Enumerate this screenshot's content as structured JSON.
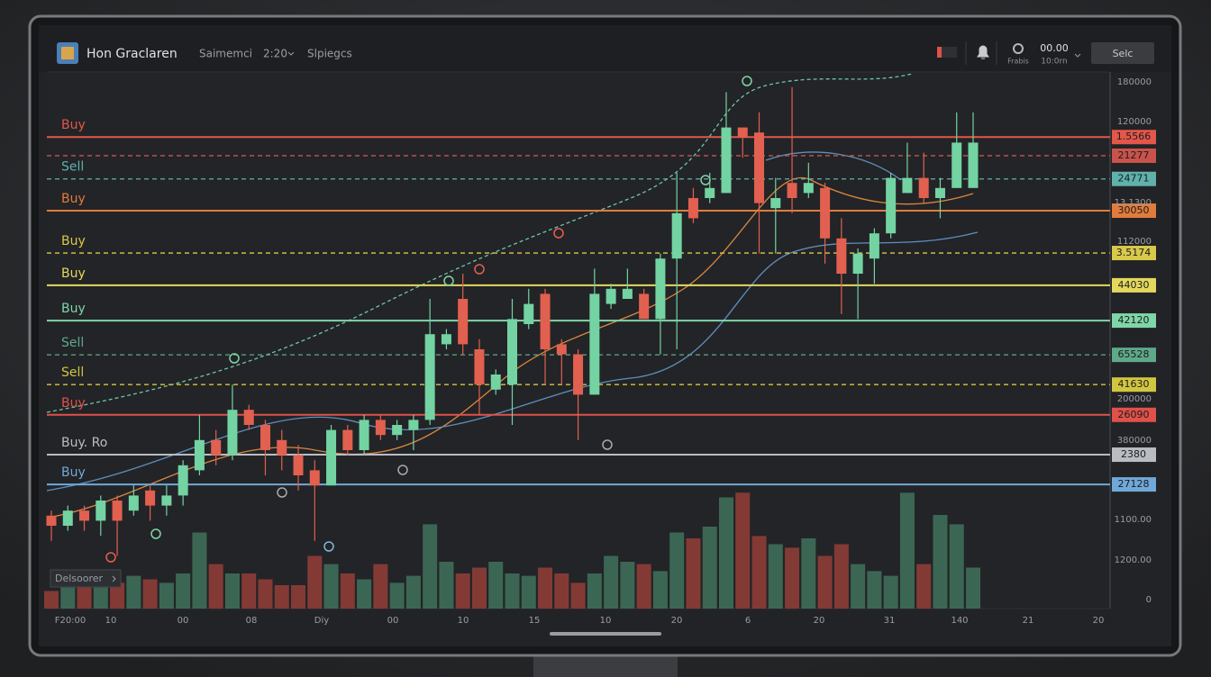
{
  "header": {
    "title": "Hon Graclaren",
    "menu": [
      "Saimemci",
      "2:20",
      "Slpiegcs"
    ],
    "clock": [
      "00.00",
      "10:0rn"
    ],
    "settings": "Frabis",
    "button": "Selc"
  },
  "panel": {
    "indicator": "Delsoorer"
  },
  "chart_data": {
    "type": "candlestick",
    "ylim": [
      0,
      100
    ],
    "volume_lim": [
      0,
      100
    ],
    "open": [
      12,
      10,
      13,
      11,
      15,
      13,
      17,
      14,
      16,
      21,
      27,
      24,
      33,
      30,
      27,
      24,
      21,
      18,
      29,
      25,
      31,
      28,
      29,
      31,
      46,
      55,
      45,
      37,
      38,
      50,
      56,
      46,
      44,
      36,
      54,
      55,
      56,
      51,
      63,
      75,
      75,
      76,
      89,
      88,
      73,
      78,
      76,
      77,
      67,
      60,
      63,
      68,
      76,
      79,
      75,
      77,
      77
    ],
    "high": [
      13,
      14,
      14,
      16,
      16,
      18,
      18,
      18,
      23,
      32,
      29,
      38,
      34,
      31,
      29,
      26,
      23,
      30,
      30,
      32,
      32,
      31,
      32,
      55,
      49,
      60,
      47,
      41,
      55,
      57,
      57,
      47,
      45,
      61,
      58,
      61,
      57,
      64,
      80,
      77,
      80,
      96,
      89,
      92,
      79,
      97,
      82,
      78,
      71,
      65,
      69,
      80,
      86,
      84,
      79,
      92,
      92
    ],
    "low": [
      7,
      9,
      9,
      8,
      4,
      12,
      11,
      12,
      14,
      20,
      22,
      23,
      29,
      20,
      21,
      17,
      7,
      18,
      24,
      24,
      27,
      27,
      25,
      30,
      45,
      44,
      32,
      36,
      30,
      49,
      38,
      38,
      27,
      36,
      53,
      55,
      51,
      44,
      45,
      70,
      74,
      76,
      83,
      64,
      64,
      72,
      75,
      62,
      52,
      51,
      58,
      67,
      76,
      74,
      71,
      77,
      77
    ],
    "close": [
      10,
      13,
      11,
      15,
      11,
      16,
      14,
      16,
      22,
      27,
      24,
      33,
      30,
      25,
      24,
      20,
      18,
      29,
      25,
      31,
      28,
      30,
      31,
      48,
      48,
      46,
      38,
      40,
      51,
      54,
      45,
      44,
      36,
      56,
      57,
      57,
      51,
      63,
      72,
      71,
      77,
      89,
      87,
      74,
      75,
      75,
      78,
      67,
      60,
      64,
      68,
      79,
      79,
      75,
      77,
      86,
      86
    ],
    "volume": [
      15,
      18,
      20,
      18,
      22,
      28,
      25,
      22,
      30,
      65,
      38,
      30,
      30,
      25,
      20,
      20,
      45,
      38,
      30,
      25,
      38,
      22,
      28,
      72,
      40,
      30,
      35,
      40,
      30,
      28,
      35,
      30,
      22,
      30,
      45,
      40,
      38,
      32,
      65,
      60,
      70,
      95,
      99,
      62,
      55,
      52,
      60,
      45,
      55,
      38,
      32,
      28,
      99,
      38,
      80,
      72,
      35
    ],
    "up_color": "#73d3a2",
    "down_color": "#e2604f",
    "levels": [
      {
        "label": "Buy",
        "tag": "1.5566",
        "value": 87.1,
        "color": "#e2574a",
        "dashed": false
      },
      {
        "tag": "21277",
        "value": 83.4,
        "color": "#c9534b",
        "dashed": true
      },
      {
        "label": "Sell",
        "tag": "24771",
        "value": 78.8,
        "color": "#5fb2ab",
        "dashed": true
      },
      {
        "label": "Buy",
        "tag": "30050",
        "value": 72.5,
        "color": "#e07c3c",
        "dashed": false
      },
      {
        "label": "Buy",
        "tag": "3.5174",
        "value": 64.1,
        "color": "#d9c94a",
        "dashed": true
      },
      {
        "label": "Buy",
        "tag": "44030",
        "value": 57.7,
        "color": "#e4d85c",
        "dashed": false
      },
      {
        "label": "Buy",
        "tag": "42120",
        "value": 50.7,
        "color": "#7fd6a6",
        "dashed": false
      },
      {
        "label": "Sell",
        "tag": "65528",
        "value": 43.9,
        "color": "#5fa98b",
        "dashed": true
      },
      {
        "label": "Sell",
        "tag": "41630",
        "value": 38.0,
        "color": "#d2c640",
        "dashed": true
      },
      {
        "label": "Buy",
        "tag": "26090",
        "value": 32.0,
        "color": "#e0514a",
        "dashed": false
      },
      {
        "label": "Buy. Ro",
        "tag": "2380",
        "value": 24.1,
        "color": "#b9bdc2",
        "dashed": false
      },
      {
        "label": "Buy",
        "tag": "27128",
        "value": 18.2,
        "color": "#6fa9d9",
        "dashed": false
      }
    ],
    "y_axis_labels": [
      "180000",
      "120000",
      "13.1300",
      "112000",
      "200000",
      "380000",
      "1100.00",
      "1200.00",
      "0"
    ],
    "x_labels": [
      "F20:00",
      "10",
      "00",
      "08",
      "Diy",
      "00",
      "10",
      "15",
      "10",
      "20",
      "6",
      "20",
      "31",
      "140",
      "21",
      "20"
    ]
  }
}
